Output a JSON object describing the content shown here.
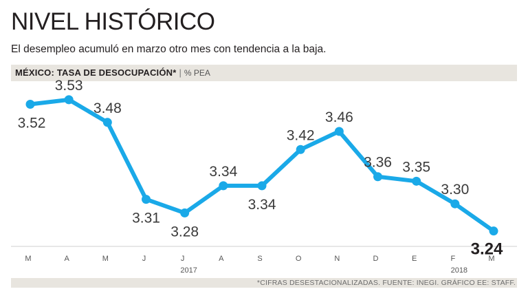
{
  "header": {
    "title": "NIVEL HISTÓRICO",
    "subtitle": "El desempleo acumuló en marzo otro mes con tendencia a la baja.",
    "band_bold": "MÉXICO: TASA DE DESOCUPACIÓN*",
    "band_sep": "|",
    "band_unit": "% PEA"
  },
  "footer": {
    "note": "*CIFRAS DESESTACIONALIZADAS.  FUENTE: INEGI.  GRÁFICO EE: STAFF."
  },
  "colors": {
    "line": "#1aa9e8",
    "band": "#e8e5df"
  },
  "chart_data": {
    "type": "line",
    "title": "MÉXICO: TASA DE DESOCUPACIÓN*",
    "ylabel": "% PEA",
    "xlabel": "",
    "categories": [
      "M",
      "A",
      "M",
      "J",
      "J",
      "A",
      "S",
      "O",
      "N",
      "D",
      "E",
      "F",
      "M"
    ],
    "values": [
      3.52,
      3.53,
      3.48,
      3.31,
      3.28,
      3.34,
      3.34,
      3.42,
      3.46,
      3.36,
      3.35,
      3.3,
      3.24
    ],
    "labels": [
      "3.52",
      "3.53",
      "3.48",
      "3.31",
      "3.28",
      "3.34",
      "3.34",
      "3.42",
      "3.46",
      "3.36",
      "3.35",
      "3.30",
      "3.24"
    ],
    "label_positions": [
      "below",
      "above",
      "above",
      "below",
      "below",
      "above",
      "below",
      "above",
      "above",
      "above",
      "above",
      "above",
      "below"
    ],
    "year_labels": [
      {
        "text": "2017",
        "index": 4
      },
      {
        "text": "2018",
        "index": 11
      }
    ],
    "ylim": [
      3.2,
      3.58
    ],
    "grid": false,
    "legend": "none"
  }
}
